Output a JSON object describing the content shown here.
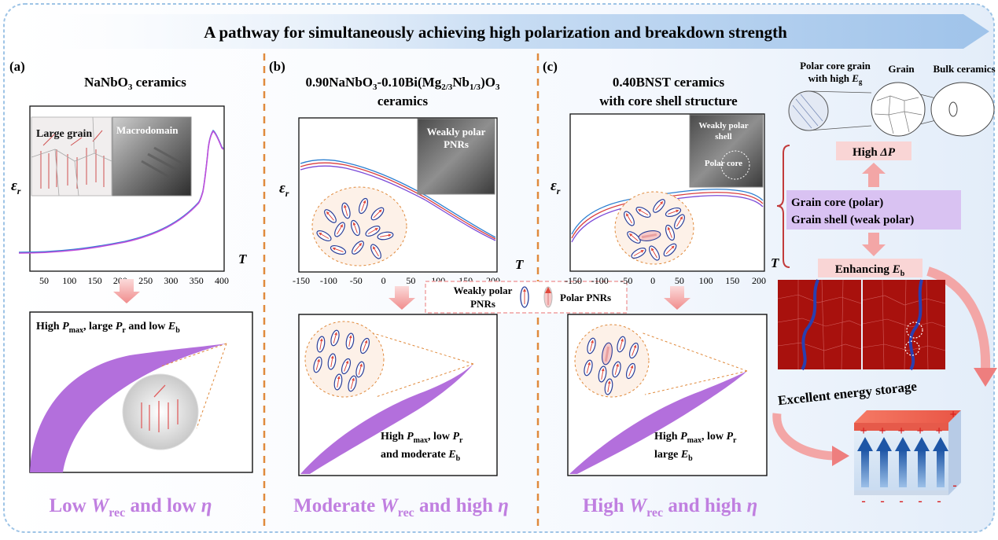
{
  "title": "A pathway for simultaneously achieving high polarization and breakdown strength",
  "colors": {
    "frame": "#9ec4e6",
    "divider": "#e08a3c",
    "purple": "#b36fdc",
    "conclusion": "#c07fe0",
    "pink_arrow": "#f3a6a6",
    "pink_box": "#f9d5d5",
    "lavender_box": "#d9c2f2",
    "map_red": "#a8110d"
  },
  "panel_a": {
    "label": "(a)",
    "title": {
      "pre": "NaNbO",
      "sub": "3",
      "post": " ceramics"
    },
    "inset_large_grain": "Large grain",
    "inset_macrodomain": "Macrodomain",
    "y_label": {
      "main": "ε",
      "sub": "r"
    },
    "x_label": "T",
    "x_ticks": [
      "50",
      "100",
      "150",
      "200",
      "250",
      "300",
      "350",
      "400"
    ],
    "loop_caption": {
      "t1": "High ",
      "v1": "P",
      "s1": "max",
      "t2": ", large ",
      "v2": "P",
      "s2": "r",
      "t3": " and low ",
      "v3": "E",
      "s3": "b"
    },
    "conclusion": {
      "t1": "Low ",
      "v1": "W",
      "s1": "rec",
      "t2": " and low ",
      "v2": "η"
    }
  },
  "panel_b": {
    "label": "(b)",
    "title1": {
      "p1": "0.90NaNbO",
      "s1": "3",
      "p2": "-0.10Bi(Mg",
      "s2": "2/3",
      "p3": "Nb",
      "s3": "1/3",
      "p4": ")O",
      "s4": "3"
    },
    "title2": "ceramics",
    "inset": [
      "Weakly polar",
      "PNRs"
    ],
    "y_label": {
      "main": "ε",
      "sub": "r"
    },
    "x_label": "T",
    "x_ticks": [
      "-150",
      "-100",
      "-50",
      "0",
      "50",
      "100",
      "150",
      "200"
    ],
    "loop_caption": {
      "l1_t": "High ",
      "l1_v": "P",
      "l1_s": "max",
      "l1_t2": ", low ",
      "l1_v2": "P",
      "l1_s2": "r",
      "l2_t": "and moderate ",
      "l2_v": "E",
      "l2_s": "b"
    },
    "conclusion": {
      "t1": "Moderate ",
      "v1": "W",
      "s1": "rec",
      "t2": " and high ",
      "v2": "η"
    }
  },
  "panel_c": {
    "label": "(c)",
    "title1": "0.40BNST ceramics",
    "title2": "with core shell structure",
    "inset": [
      "Weakly polar",
      "shell",
      "Polar core"
    ],
    "y_label": {
      "main": "ε",
      "sub": "r"
    },
    "x_label": "T",
    "x_ticks": [
      "-150",
      "-100",
      "-50",
      "0",
      "50",
      "100",
      "150",
      "200"
    ],
    "loop_caption": {
      "l1_t": "High ",
      "l1_v": "P",
      "l1_s": "max",
      "l1_t2": ", low ",
      "l1_v2": "P",
      "l1_s2": "r",
      "l2_t": "large ",
      "l2_v": "E",
      "l2_s": "b"
    },
    "conclusion": {
      "t1": "High ",
      "v1": "W",
      "s1": "rec",
      "t2": " and high ",
      "v2": "η"
    }
  },
  "legend": {
    "weak": [
      "Weakly polar",
      "PNRs"
    ],
    "polar": "Polar PNRs"
  },
  "right": {
    "grain_labels": {
      "polar_core_1": "Polar core grain",
      "polar_core_2_pre": "with high ",
      "polar_core_2_v": "E",
      "polar_core_2_s": "g",
      "grain": "Grain",
      "bulk": "Bulk ceramics"
    },
    "high_dp": {
      "t": "High ",
      "v": "ΔP"
    },
    "core_shell": [
      "Grain core (polar)",
      "Grain shell (weak polar)"
    ],
    "enhancing": {
      "t": "Enhancing ",
      "v": "E",
      "s": "b"
    },
    "excellent": "Excellent energy storage",
    "plus": "+",
    "minus": "-"
  }
}
